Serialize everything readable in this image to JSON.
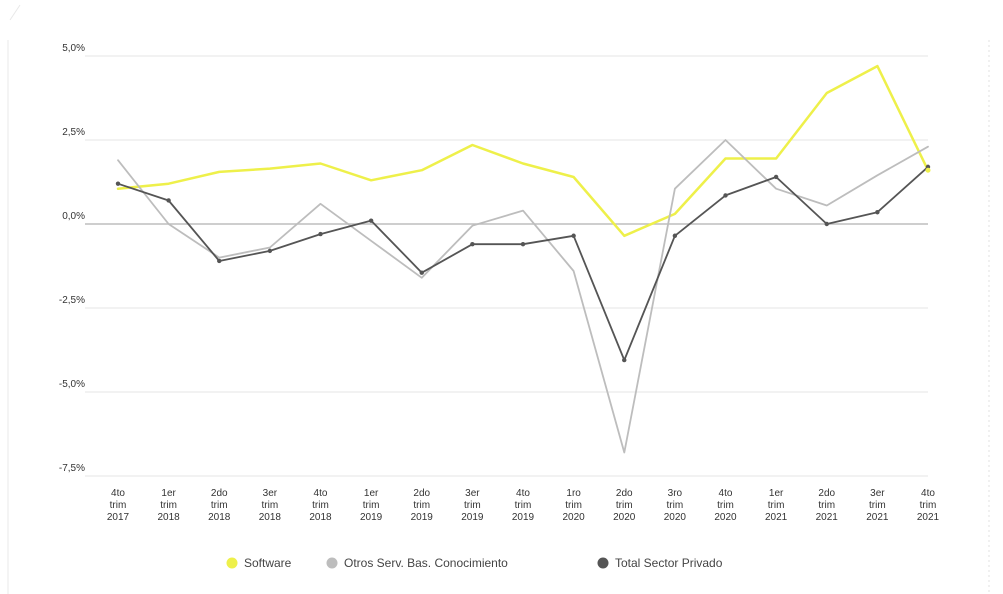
{
  "chart_data": {
    "type": "line",
    "categories": [
      [
        "4to",
        "trim",
        "2017"
      ],
      [
        "1er",
        "trim",
        "2018"
      ],
      [
        "2do",
        "trim",
        "2018"
      ],
      [
        "3er",
        "trim",
        "2018"
      ],
      [
        "4to",
        "trim",
        "2018"
      ],
      [
        "1er",
        "trim",
        "2019"
      ],
      [
        "2do",
        "trim",
        "2019"
      ],
      [
        "3er",
        "trim",
        "2019"
      ],
      [
        "4to",
        "trim",
        "2019"
      ],
      [
        "1ro",
        "trim",
        "2020"
      ],
      [
        "2do",
        "trim",
        "2020"
      ],
      [
        "3ro",
        "trim",
        "2020"
      ],
      [
        "4to",
        "trim",
        "2020"
      ],
      [
        "1er",
        "trim",
        "2021"
      ],
      [
        "2do",
        "trim",
        "2021"
      ],
      [
        "3er",
        "trim",
        "2021"
      ],
      [
        "4to",
        "trim",
        "2021"
      ]
    ],
    "y_ticks": [
      {
        "value": 5.0,
        "label": "5,0%"
      },
      {
        "value": 2.5,
        "label": "2,5%"
      },
      {
        "value": 0.0,
        "label": "0,0%"
      },
      {
        "value": -2.5,
        "label": "-2,5%"
      },
      {
        "value": -5.0,
        "label": "-5,0%"
      },
      {
        "value": -7.5,
        "label": "-7,5%"
      }
    ],
    "ylim": [
      -7.5,
      5.0
    ],
    "grid": true,
    "legend_position": "bottom",
    "series": [
      {
        "name": "Software",
        "color": "#eef04a",
        "markers": false,
        "values": [
          1.05,
          1.2,
          1.55,
          1.65,
          1.8,
          1.3,
          1.6,
          2.35,
          1.8,
          1.4,
          -0.35,
          0.3,
          1.95,
          1.95,
          3.9,
          4.7,
          1.6
        ]
      },
      {
        "name": "Otros Serv. Bas. Conocimiento",
        "color": "#bdbdbd",
        "markers": false,
        "values": [
          1.9,
          0.0,
          -1.0,
          -0.7,
          0.6,
          -0.5,
          -1.6,
          -0.05,
          0.4,
          -1.4,
          -6.8,
          1.05,
          2.5,
          1.05,
          0.55,
          1.45,
          2.3
        ]
      },
      {
        "name": "Total Sector Privado",
        "color": "#555555",
        "markers": true,
        "values": [
          1.2,
          0.7,
          -1.1,
          -0.8,
          -0.3,
          0.1,
          -1.45,
          -0.6,
          -0.6,
          -0.35,
          -4.05,
          -0.35,
          0.85,
          1.4,
          0.0,
          0.35,
          1.7
        ]
      }
    ]
  }
}
